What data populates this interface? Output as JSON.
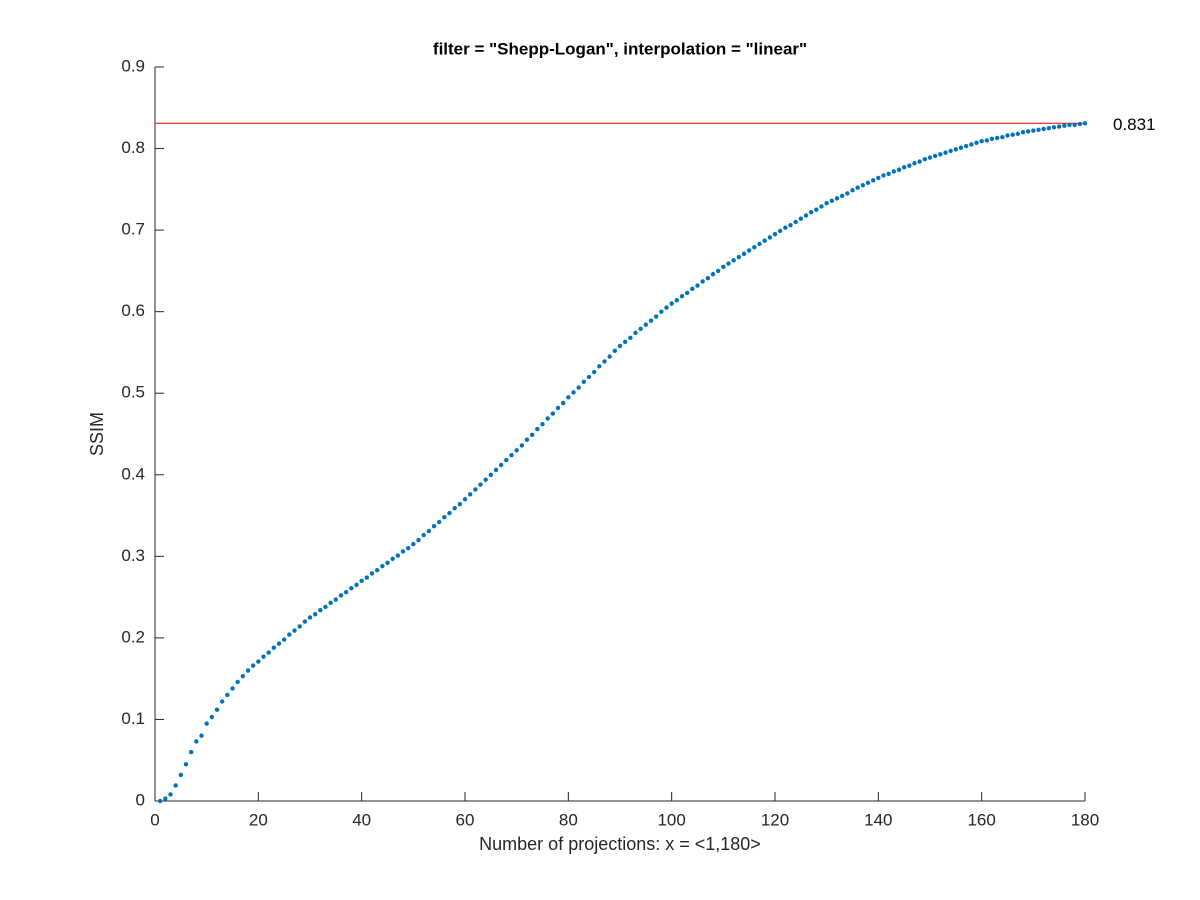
{
  "chart_data": {
    "type": "scatter",
    "title": "filter = \"Shepp-Logan\", interpolation = \"linear\"",
    "xlabel": "Number of projections: x = <1,180>",
    "ylabel": "SSIM",
    "color": "#0072bd",
    "hline": 0.831,
    "hline_color": "#ff0000",
    "xlim": [
      0,
      180
    ],
    "xticks": [
      0,
      20,
      40,
      60,
      80,
      100,
      120,
      140,
      160,
      180
    ],
    "ylim": [
      0,
      0.9
    ],
    "yticks": [
      0,
      0.1,
      0.2,
      0.3,
      0.4,
      0.5,
      0.6,
      0.7,
      0.8,
      0.9
    ],
    "grid": false,
    "x": [
      1,
      2,
      3,
      4,
      5,
      6,
      7,
      8,
      9,
      10,
      11,
      12,
      13,
      14,
      15,
      16,
      17,
      18,
      19,
      20,
      21,
      22,
      23,
      24,
      25,
      26,
      27,
      28,
      29,
      30,
      31,
      32,
      33,
      34,
      35,
      36,
      37,
      38,
      39,
      40,
      41,
      42,
      43,
      44,
      45,
      46,
      47,
      48,
      49,
      50,
      51,
      52,
      53,
      54,
      55,
      56,
      57,
      58,
      59,
      60,
      61,
      62,
      63,
      64,
      65,
      66,
      67,
      68,
      69,
      70,
      71,
      72,
      73,
      74,
      75,
      76,
      77,
      78,
      79,
      80,
      81,
      82,
      83,
      84,
      85,
      86,
      87,
      88,
      89,
      90,
      91,
      92,
      93,
      94,
      95,
      96,
      97,
      98,
      99,
      100,
      101,
      102,
      103,
      104,
      105,
      106,
      107,
      108,
      109,
      110,
      111,
      112,
      113,
      114,
      115,
      116,
      117,
      118,
      119,
      120,
      121,
      122,
      123,
      124,
      125,
      126,
      127,
      128,
      129,
      130,
      131,
      132,
      133,
      134,
      135,
      136,
      137,
      138,
      139,
      140,
      141,
      142,
      143,
      144,
      145,
      146,
      147,
      148,
      149,
      150,
      151,
      152,
      153,
      154,
      155,
      156,
      157,
      158,
      159,
      160,
      161,
      162,
      163,
      164,
      165,
      166,
      167,
      168,
      169,
      170,
      171,
      172,
      173,
      174,
      175,
      176,
      177,
      178,
      179,
      180
    ],
    "values": [
      0.0,
      0.003,
      0.008,
      0.019,
      0.032,
      0.045,
      0.06,
      0.073,
      0.08,
      0.095,
      0.103,
      0.112,
      0.122,
      0.13,
      0.138,
      0.146,
      0.153,
      0.16,
      0.166,
      0.171,
      0.177,
      0.182,
      0.188,
      0.193,
      0.198,
      0.204,
      0.209,
      0.214,
      0.22,
      0.225,
      0.229,
      0.234,
      0.238,
      0.243,
      0.247,
      0.252,
      0.256,
      0.261,
      0.265,
      0.27,
      0.274,
      0.279,
      0.283,
      0.288,
      0.292,
      0.297,
      0.301,
      0.306,
      0.31,
      0.315,
      0.32,
      0.326,
      0.331,
      0.337,
      0.342,
      0.348,
      0.353,
      0.359,
      0.364,
      0.37,
      0.376,
      0.382,
      0.388,
      0.394,
      0.4,
      0.406,
      0.412,
      0.418,
      0.424,
      0.43,
      0.436,
      0.443,
      0.449,
      0.456,
      0.462,
      0.469,
      0.475,
      0.482,
      0.488,
      0.495,
      0.501,
      0.507,
      0.514,
      0.52,
      0.526,
      0.533,
      0.539,
      0.545,
      0.552,
      0.558,
      0.563,
      0.568,
      0.574,
      0.579,
      0.584,
      0.589,
      0.594,
      0.6,
      0.605,
      0.61,
      0.614,
      0.619,
      0.623,
      0.628,
      0.632,
      0.637,
      0.641,
      0.646,
      0.65,
      0.655,
      0.659,
      0.663,
      0.667,
      0.671,
      0.675,
      0.679,
      0.683,
      0.687,
      0.691,
      0.695,
      0.699,
      0.703,
      0.706,
      0.71,
      0.714,
      0.718,
      0.722,
      0.725,
      0.729,
      0.733,
      0.736,
      0.739,
      0.742,
      0.745,
      0.749,
      0.752,
      0.755,
      0.758,
      0.761,
      0.764,
      0.767,
      0.769,
      0.772,
      0.774,
      0.777,
      0.779,
      0.782,
      0.784,
      0.787,
      0.789,
      0.791,
      0.793,
      0.795,
      0.797,
      0.799,
      0.801,
      0.803,
      0.805,
      0.807,
      0.809,
      0.81,
      0.812,
      0.813,
      0.814,
      0.816,
      0.817,
      0.818,
      0.82,
      0.821,
      0.822,
      0.823,
      0.824,
      0.825,
      0.826,
      0.827,
      0.828,
      0.829,
      0.829,
      0.83,
      0.831
    ]
  }
}
